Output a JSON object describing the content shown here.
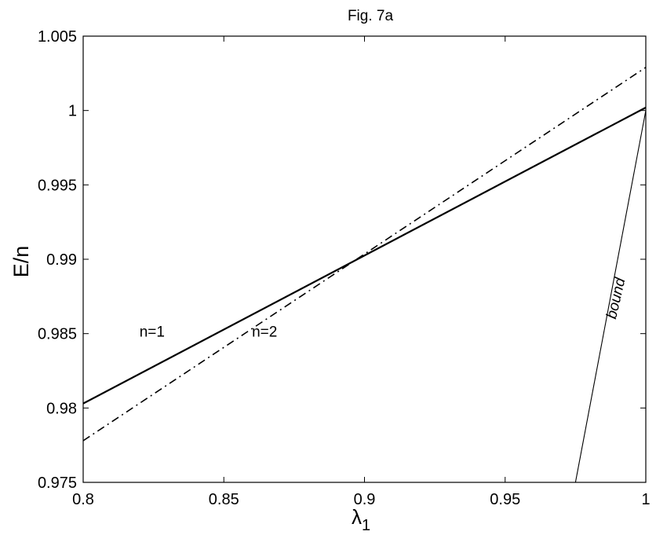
{
  "chart_data": {
    "type": "line",
    "title": "Fig. 7a",
    "xlabel": "λ",
    "xlabel_subscript": "1",
    "ylabel": "E/n",
    "xlim": [
      0.8,
      1.0
    ],
    "ylim": [
      0.975,
      1.005
    ],
    "xticks": [
      "0.8",
      "0.85",
      "0.9",
      "0.95",
      "1"
    ],
    "yticks": [
      "1.005",
      "1",
      "0.995",
      "0.99",
      "0.985",
      "0.98",
      "0.975"
    ],
    "grid": false,
    "series": [
      {
        "name": "n=1",
        "style": "solid",
        "x": [
          0.8,
          1.0
        ],
        "y": [
          0.9803,
          1.0002
        ]
      },
      {
        "name": "n=2",
        "style": "dashdot",
        "x": [
          0.8,
          1.0
        ],
        "y": [
          0.9778,
          1.0029
        ]
      },
      {
        "name": "bound",
        "style": "thin",
        "x": [
          0.975,
          1.0
        ],
        "y": [
          0.975,
          1.0
        ]
      }
    ],
    "annotations": [
      {
        "text": "n=1",
        "x": 0.82,
        "y": 0.9848
      },
      {
        "text": "n=2",
        "x": 0.86,
        "y": 0.9848
      },
      {
        "text": "bound",
        "x": 0.991,
        "y": 0.9873,
        "rotation": -77
      }
    ]
  }
}
